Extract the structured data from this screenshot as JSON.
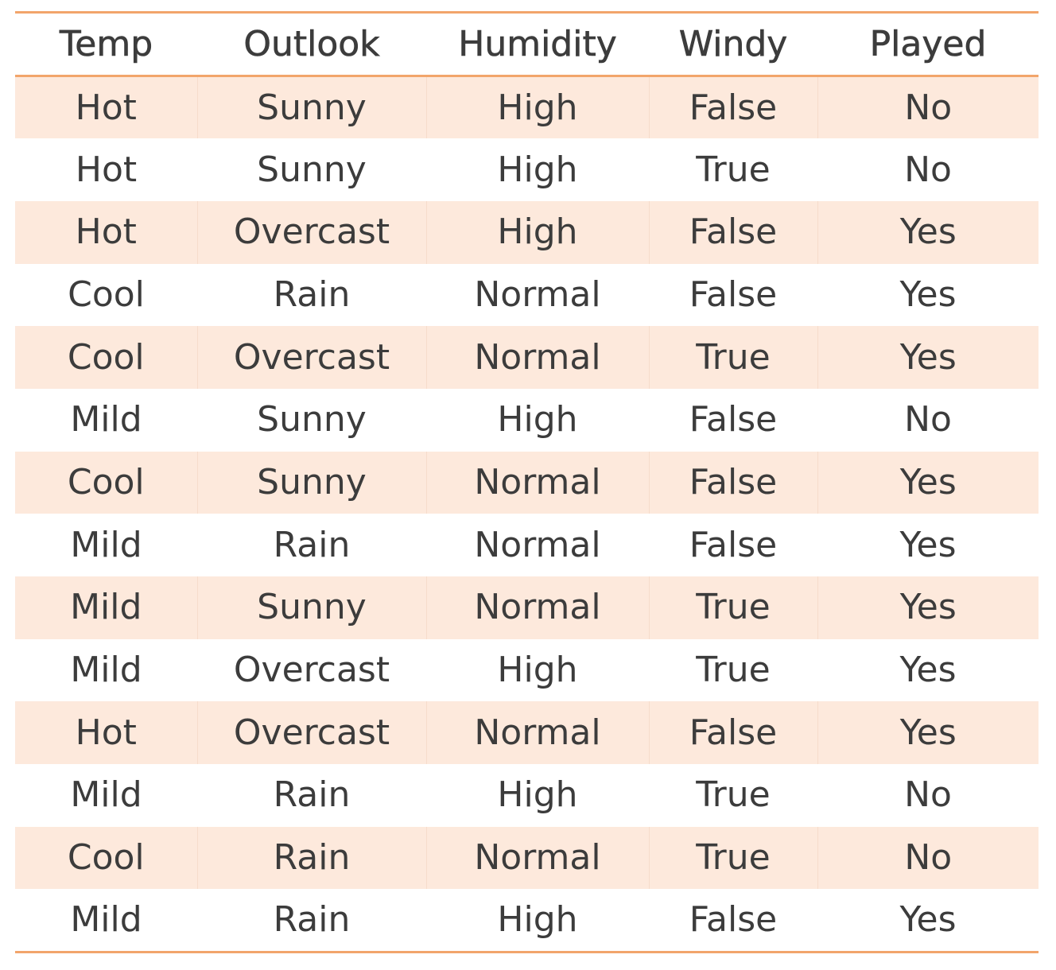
{
  "table": {
    "headers": [
      "Temp",
      "Outlook",
      "Humidity",
      "Windy",
      "Played"
    ],
    "rows": [
      [
        "Hot",
        "Sunny",
        "High",
        "False",
        "No"
      ],
      [
        "Hot",
        "Sunny",
        "High",
        "True",
        "No"
      ],
      [
        "Hot",
        "Overcast",
        "High",
        "False",
        "Yes"
      ],
      [
        "Cool",
        "Rain",
        "Normal",
        "False",
        "Yes"
      ],
      [
        "Cool",
        "Overcast",
        "Normal",
        "True",
        "Yes"
      ],
      [
        "Mild",
        "Sunny",
        "High",
        "False",
        "No"
      ],
      [
        "Cool",
        "Sunny",
        "Normal",
        "False",
        "Yes"
      ],
      [
        "Mild",
        "Rain",
        "Normal",
        "False",
        "Yes"
      ],
      [
        "Mild",
        "Sunny",
        "Normal",
        "True",
        "Yes"
      ],
      [
        "Mild",
        "Overcast",
        "High",
        "True",
        "Yes"
      ],
      [
        "Hot",
        "Overcast",
        "Normal",
        "False",
        "Yes"
      ],
      [
        "Mild",
        "Rain",
        "High",
        "True",
        "No"
      ],
      [
        "Cool",
        "Rain",
        "Normal",
        "True",
        "No"
      ],
      [
        "Mild",
        "Rain",
        "High",
        "False",
        "Yes"
      ]
    ]
  },
  "colors": {
    "rule": "#f2a56b",
    "stripe": "#fde9dc",
    "text": "#3c3c3c"
  }
}
